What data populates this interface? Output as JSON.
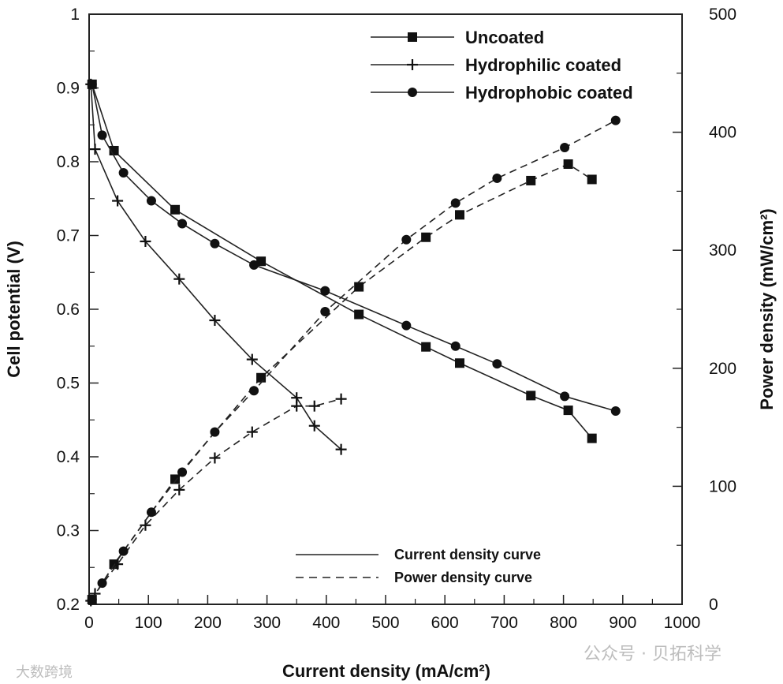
{
  "chart_data": {
    "type": "line",
    "xlabel": "Current density (mA/cm²)",
    "ylabel": "Cell potential (V)",
    "y2label": "Power density (mW/cm²)",
    "xlim": [
      0,
      1000
    ],
    "ylim": [
      0.2,
      1.0
    ],
    "y2lim": [
      0,
      500
    ],
    "xticks": [
      "0",
      "100",
      "200",
      "300",
      "400",
      "500",
      "600",
      "700",
      "800",
      "900",
      "1000"
    ],
    "yticks": [
      "0.2",
      "0.3",
      "0.4",
      "0.5",
      "0.6",
      "0.7",
      "0.8",
      "0.9",
      "1"
    ],
    "y2ticks": [
      "0",
      "100",
      "200",
      "300",
      "400",
      "500"
    ],
    "series": [
      {
        "name": "Uncoated",
        "marker": "square",
        "polarization": [
          [
            5,
            0.905
          ],
          [
            42,
            0.815
          ],
          [
            145,
            0.735
          ],
          [
            290,
            0.665
          ],
          [
            455,
            0.593
          ],
          [
            568,
            0.549
          ],
          [
            625,
            0.527
          ],
          [
            745,
            0.483
          ],
          [
            808,
            0.463
          ],
          [
            848,
            0.425
          ]
        ],
        "power": [
          [
            5,
            4
          ],
          [
            42,
            34
          ],
          [
            145,
            106
          ],
          [
            290,
            192
          ],
          [
            455,
            269
          ],
          [
            568,
            311
          ],
          [
            625,
            330
          ],
          [
            745,
            359
          ],
          [
            808,
            373
          ],
          [
            848,
            360
          ]
        ]
      },
      {
        "name": "Hydrophilic coated",
        "marker": "plus",
        "polarization": [
          [
            3,
            0.905
          ],
          [
            10,
            0.817
          ],
          [
            48,
            0.747
          ],
          [
            95,
            0.692
          ],
          [
            152,
            0.641
          ],
          [
            212,
            0.585
          ],
          [
            275,
            0.532
          ],
          [
            350,
            0.48
          ],
          [
            380,
            0.442
          ],
          [
            425,
            0.41
          ]
        ],
        "power": [
          [
            3,
            3
          ],
          [
            10,
            9
          ],
          [
            48,
            34
          ],
          [
            95,
            67
          ],
          [
            152,
            97
          ],
          [
            212,
            124
          ],
          [
            275,
            146
          ],
          [
            350,
            168
          ],
          [
            380,
            168
          ],
          [
            425,
            174
          ]
        ]
      },
      {
        "name": "Hydrophobic coated",
        "marker": "circle",
        "polarization": [
          [
            5,
            0.905
          ],
          [
            22,
            0.836
          ],
          [
            58,
            0.785
          ],
          [
            105,
            0.747
          ],
          [
            157,
            0.716
          ],
          [
            212,
            0.689
          ],
          [
            278,
            0.66
          ],
          [
            398,
            0.625
          ],
          [
            535,
            0.578
          ],
          [
            618,
            0.55
          ],
          [
            688,
            0.526
          ],
          [
            802,
            0.482
          ],
          [
            888,
            0.462
          ]
        ],
        "power": [
          [
            5,
            4
          ],
          [
            22,
            18
          ],
          [
            58,
            45
          ],
          [
            105,
            78
          ],
          [
            157,
            112
          ],
          [
            212,
            146
          ],
          [
            278,
            181
          ],
          [
            398,
            248
          ],
          [
            535,
            309
          ],
          [
            618,
            340
          ],
          [
            688,
            361
          ],
          [
            802,
            387
          ],
          [
            888,
            410
          ]
        ]
      }
    ],
    "legend": [
      "Uncoated",
      "Hydrophilic coated",
      "Hydrophobic coated"
    ],
    "line_legend": [
      {
        "label": "Current density curve",
        "style": "solid"
      },
      {
        "label": "Power density curve",
        "style": "dashed"
      }
    ],
    "watermarks": [
      "大数跨境",
      "公众号 · 贝拓科学"
    ]
  }
}
